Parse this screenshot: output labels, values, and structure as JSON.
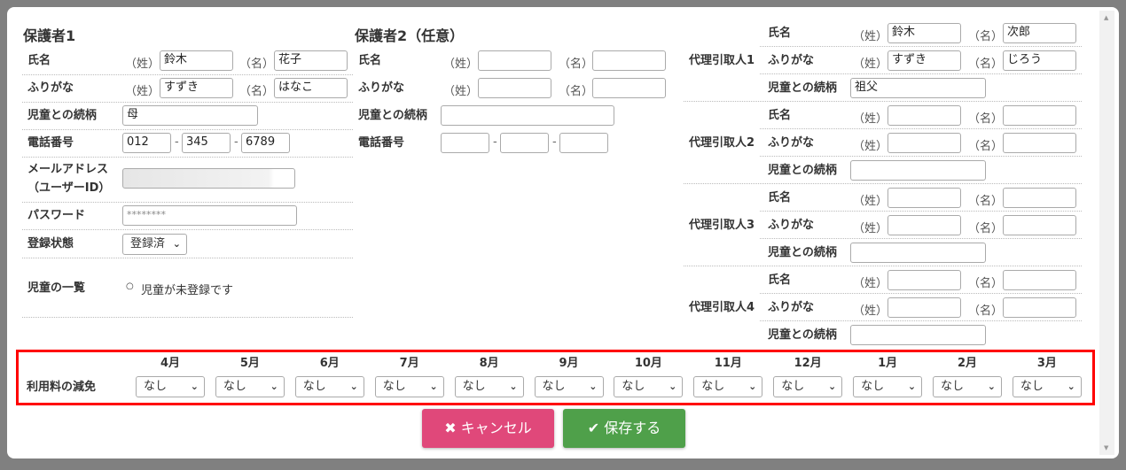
{
  "guardian1": {
    "title": "保護者1",
    "name_label": "氏名",
    "kana_label": "ふりがな",
    "relation_label": "児童との続柄",
    "phone_label": "電話番号",
    "email_label_1": "メールアドレス",
    "email_label_2": "（ユーザーID）",
    "password_label": "パスワード",
    "status_label": "登録状態",
    "children_label": "児童の一覧",
    "last_paren": "（姓）",
    "first_paren": "（名）",
    "last_name": "鈴木",
    "first_name": "花子",
    "last_kana": "すずき",
    "first_kana": "はなこ",
    "relation": "母",
    "phone": [
      "012",
      "345",
      "6789"
    ],
    "password": "********",
    "status": "登録済",
    "children_empty": "児童が未登録です"
  },
  "guardian2": {
    "title": "保護者2（任意）",
    "name_label": "氏名",
    "kana_label": "ふりがな",
    "relation_label": "児童との続柄",
    "phone_label": "電話番号",
    "last_paren": "（姓）",
    "first_paren": "（名）",
    "last_name": "",
    "first_name": "",
    "last_kana": "",
    "first_kana": "",
    "relation": "",
    "phone": [
      "",
      "",
      ""
    ]
  },
  "proxy_common": {
    "name_label": "氏名",
    "kana_label": "ふりがな",
    "relation_label": "児童との続柄",
    "last_paren": "（姓）",
    "first_paren": "（名）"
  },
  "proxies": [
    {
      "label": "代理引取人1",
      "last_name": "鈴木",
      "first_name": "次郎",
      "last_kana": "すずき",
      "first_kana": "じろう",
      "relation": "祖父"
    },
    {
      "label": "代理引取人2",
      "last_name": "",
      "first_name": "",
      "last_kana": "",
      "first_kana": "",
      "relation": ""
    },
    {
      "label": "代理引取人3",
      "last_name": "",
      "first_name": "",
      "last_kana": "",
      "first_kana": "",
      "relation": ""
    },
    {
      "label": "代理引取人4",
      "last_name": "",
      "first_name": "",
      "last_kana": "",
      "first_kana": "",
      "relation": ""
    }
  ],
  "fee": {
    "label": "利用料の減免",
    "highlight_color": "#ff0000",
    "months": [
      {
        "month": "4月",
        "value": "なし"
      },
      {
        "month": "5月",
        "value": "なし"
      },
      {
        "month": "6月",
        "value": "なし"
      },
      {
        "month": "7月",
        "value": "なし"
      },
      {
        "month": "8月",
        "value": "なし"
      },
      {
        "month": "9月",
        "value": "なし"
      },
      {
        "month": "10月",
        "value": "なし"
      },
      {
        "month": "11月",
        "value": "なし"
      },
      {
        "month": "12月",
        "value": "なし"
      },
      {
        "month": "1月",
        "value": "なし"
      },
      {
        "month": "2月",
        "value": "なし"
      },
      {
        "month": "3月",
        "value": "なし"
      }
    ]
  },
  "buttons": {
    "cancel": "キャンセル",
    "save": "保存する",
    "cancel_color": "#e0487a",
    "save_color": "#4fa04a"
  }
}
